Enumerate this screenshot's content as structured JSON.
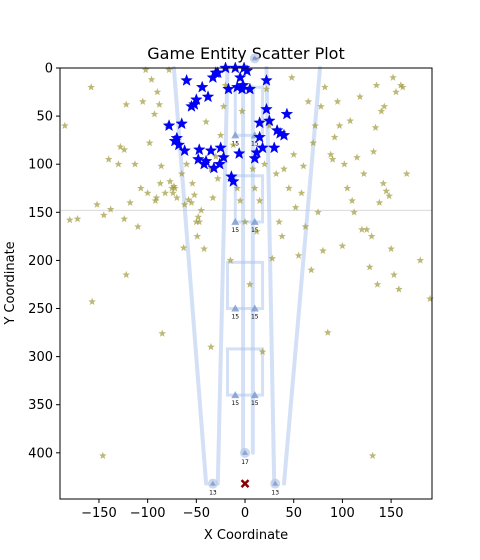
{
  "chart_data": {
    "type": "scatter",
    "title": "Game Entity Scatter Plot",
    "xlabel": "X Coordinate",
    "ylabel": "Y Coordinate",
    "xlim": [
      -190,
      192
    ],
    "ylim": [
      448,
      0
    ],
    "y_inverted": true,
    "x_ticks": [
      -150,
      -100,
      -50,
      0,
      50,
      100,
      150
    ],
    "y_ticks": [
      0,
      50,
      100,
      150,
      200,
      250,
      300,
      350,
      400
    ],
    "x_tick_labels": [
      "−150",
      "−100",
      "−50",
      "0",
      "50",
      "100",
      "150"
    ],
    "y_tick_labels": [
      "0",
      "50",
      "100",
      "150",
      "200",
      "250",
      "300",
      "350",
      "400"
    ],
    "grid": false,
    "reference_line": {
      "y": 148,
      "color": "#d9d9d9"
    },
    "colors": {
      "lane": "#aec7ee",
      "olive_star": "#a09a3c",
      "blue_star": "#0000ff",
      "marker_circle": "#b7c8e6",
      "marker_cross": "#8b0000",
      "triangle": "#7a99cc"
    },
    "lanes": [
      {
        "points": [
          [
            -73,
            0
          ],
          [
            -40,
            432
          ]
        ]
      },
      {
        "points": [
          [
            -18,
            0
          ],
          [
            -28,
            432
          ]
        ]
      },
      {
        "points": [
          [
            22,
            0
          ],
          [
            30,
            432
          ]
        ]
      },
      {
        "points": [
          [
            77,
            0
          ],
          [
            40,
            432
          ]
        ]
      },
      {
        "points": [
          [
            -2,
            20
          ],
          [
            -2,
            400
          ]
        ]
      },
      {
        "points": [
          [
            8,
            20
          ],
          [
            8,
            400
          ]
        ]
      }
    ],
    "boxes": [
      {
        "x0": -10,
        "x1": 18,
        "y0": 20,
        "y1": 70
      },
      {
        "x0": -10,
        "x1": 18,
        "y0": 112,
        "y1": 160
      },
      {
        "x0": -18,
        "x1": 18,
        "y0": 202,
        "y1": 250
      },
      {
        "x0": -18,
        "x1": 18,
        "y0": 292,
        "y1": 340
      }
    ],
    "triangles": [
      {
        "x": -10,
        "y": 70,
        "label": "15"
      },
      {
        "x": 10,
        "y": 70,
        "label": "15"
      },
      {
        "x": -10,
        "y": 160,
        "label": "15"
      },
      {
        "x": 10,
        "y": 160,
        "label": "15"
      },
      {
        "x": -10,
        "y": 250,
        "label": "15"
      },
      {
        "x": 10,
        "y": 250,
        "label": "15"
      },
      {
        "x": -10,
        "y": 340,
        "label": "15"
      },
      {
        "x": 10,
        "y": 340,
        "label": "15"
      }
    ],
    "circles": [
      {
        "x": 0,
        "y": 400,
        "label": "17"
      },
      {
        "x": -33,
        "y": 432,
        "label": "13"
      },
      {
        "x": 31,
        "y": 432,
        "label": "13"
      },
      {
        "x": 10,
        "y": -10,
        "label": ""
      }
    ],
    "cross": {
      "x": 0,
      "y": 432
    },
    "series": [
      {
        "marker": "star",
        "color": "#a09a3c",
        "points": [
          [
            -185,
            60
          ],
          [
            -180,
            158
          ],
          [
            -172,
            157
          ],
          [
            -158,
            20
          ],
          [
            -157,
            243
          ],
          [
            -152,
            142
          ],
          [
            -146,
            403
          ],
          [
            -145,
            153
          ],
          [
            -140,
            95
          ],
          [
            -138,
            147
          ],
          [
            -130,
            100
          ],
          [
            -128,
            82
          ],
          [
            -124,
            85
          ],
          [
            -124,
            157
          ],
          [
            -122,
            38
          ],
          [
            -122,
            215
          ],
          [
            -118,
            140
          ],
          [
            -113,
            100
          ],
          [
            -110,
            165
          ],
          [
            -107,
            125
          ],
          [
            -105,
            35
          ],
          [
            -102,
            2
          ],
          [
            -100,
            130
          ],
          [
            -98,
            78
          ],
          [
            -96,
            12
          ],
          [
            -93,
            48
          ],
          [
            -92,
            138
          ],
          [
            -91,
            135
          ],
          [
            -90,
            25
          ],
          [
            -88,
            38
          ],
          [
            -87,
            120
          ],
          [
            -86,
            102
          ],
          [
            -85,
            276
          ],
          [
            -82,
            130
          ],
          [
            -80,
            60
          ],
          [
            -78,
            2
          ],
          [
            -77,
            118
          ],
          [
            -75,
            125
          ],
          [
            -74,
            130
          ],
          [
            -73,
            123
          ],
          [
            -72,
            125
          ],
          [
            -70,
            135
          ],
          [
            -68,
            80
          ],
          [
            -65,
            110
          ],
          [
            -63,
            187
          ],
          [
            -62,
            142
          ],
          [
            -60,
            100
          ],
          [
            -58,
            137
          ],
          [
            -55,
            140
          ],
          [
            -54,
            120
          ],
          [
            -52,
            132
          ],
          [
            -50,
            160
          ],
          [
            -49,
            175
          ],
          [
            -48,
            155
          ],
          [
            -47,
            160
          ],
          [
            -45,
            148
          ],
          [
            -42,
            188
          ],
          [
            -40,
            56
          ],
          [
            -35,
            290
          ],
          [
            -35,
            105
          ],
          [
            -33,
            135
          ],
          [
            -30,
            92
          ],
          [
            -28,
            115
          ],
          [
            -25,
            70
          ],
          [
            -22,
            40
          ],
          [
            -20,
            18
          ],
          [
            -15,
            200
          ],
          [
            -12,
            80
          ],
          [
            -8,
            125
          ],
          [
            -5,
            138
          ],
          [
            -3,
            45
          ],
          [
            0,
            160
          ],
          [
            5,
            225
          ],
          [
            8,
            105
          ],
          [
            10,
            125
          ],
          [
            12,
            170
          ],
          [
            15,
            138
          ],
          [
            18,
            295
          ],
          [
            20,
            100
          ],
          [
            22,
            22
          ],
          [
            25,
            60
          ],
          [
            28,
            198
          ],
          [
            32,
            110
          ],
          [
            35,
            160
          ],
          [
            38,
            175
          ],
          [
            40,
            105
          ],
          [
            45,
            125
          ],
          [
            48,
            10
          ],
          [
            50,
            90
          ],
          [
            52,
            145
          ],
          [
            55,
            195
          ],
          [
            58,
            130
          ],
          [
            60,
            102
          ],
          [
            62,
            165
          ],
          [
            65,
            35
          ],
          [
            68,
            210
          ],
          [
            70,
            78
          ],
          [
            72,
            60
          ],
          [
            75,
            150
          ],
          [
            78,
            40
          ],
          [
            80,
            190
          ],
          [
            82,
            20
          ],
          [
            85,
            275
          ],
          [
            88,
            90
          ],
          [
            90,
            95
          ],
          [
            92,
            72
          ],
          [
            95,
            35
          ],
          [
            97,
            60
          ],
          [
            100,
            185
          ],
          [
            102,
            100
          ],
          [
            105,
            125
          ],
          [
            108,
            55
          ],
          [
            110,
            138
          ],
          [
            112,
            150
          ],
          [
            115,
            93
          ],
          [
            118,
            30
          ],
          [
            120,
            168
          ],
          [
            122,
            110
          ],
          [
            125,
            168
          ],
          [
            128,
            207
          ],
          [
            130,
            175
          ],
          [
            131,
            403
          ],
          [
            132,
            87
          ],
          [
            134,
            62
          ],
          [
            135,
            18
          ],
          [
            136,
            225
          ],
          [
            138,
            140
          ],
          [
            140,
            45
          ],
          [
            142,
            120
          ],
          [
            143,
            40
          ],
          [
            145,
            128
          ],
          [
            148,
            133
          ],
          [
            150,
            188
          ],
          [
            152,
            10
          ],
          [
            153,
            215
          ],
          [
            155,
            25
          ],
          [
            158,
            230
          ],
          [
            160,
            18
          ],
          [
            162,
            20
          ],
          [
            166,
            110
          ],
          [
            180,
            200
          ],
          [
            190,
            240
          ]
        ]
      },
      {
        "marker": "star",
        "color": "#0000ff",
        "points": [
          [
            -72,
            76
          ],
          [
            -70,
            73
          ],
          [
            -68,
            80
          ],
          [
            -78,
            60
          ],
          [
            -65,
            58
          ],
          [
            -62,
            86
          ],
          [
            -60,
            13
          ],
          [
            -55,
            40
          ],
          [
            -52,
            38
          ],
          [
            -50,
            33
          ],
          [
            -48,
            95
          ],
          [
            -47,
            85
          ],
          [
            -44,
            20
          ],
          [
            -42,
            100
          ],
          [
            -40,
            97
          ],
          [
            -38,
            30
          ],
          [
            -35,
            86
          ],
          [
            -33,
            10
          ],
          [
            -32,
            104
          ],
          [
            -30,
            5
          ],
          [
            -28,
            5
          ],
          [
            -26,
            100
          ],
          [
            -25,
            83
          ],
          [
            -22,
            93
          ],
          [
            -20,
            0
          ],
          [
            -17,
            22
          ],
          [
            -14,
            113
          ],
          [
            -12,
            118
          ],
          [
            -10,
            0
          ],
          [
            -8,
            20
          ],
          [
            -6,
            89
          ],
          [
            -5,
            10
          ],
          [
            -3,
            22
          ],
          [
            -2,
            18
          ],
          [
            -1,
            0
          ],
          [
            2,
            3
          ],
          [
            5,
            22
          ],
          [
            10,
            94
          ],
          [
            12,
            88
          ],
          [
            15,
            72
          ],
          [
            15,
            57
          ],
          [
            18,
            83
          ],
          [
            22,
            13
          ],
          [
            22,
            43
          ],
          [
            25,
            55
          ],
          [
            30,
            83
          ],
          [
            33,
            65
          ],
          [
            36,
            68
          ],
          [
            40,
            70
          ],
          [
            43,
            48
          ]
        ]
      }
    ]
  }
}
